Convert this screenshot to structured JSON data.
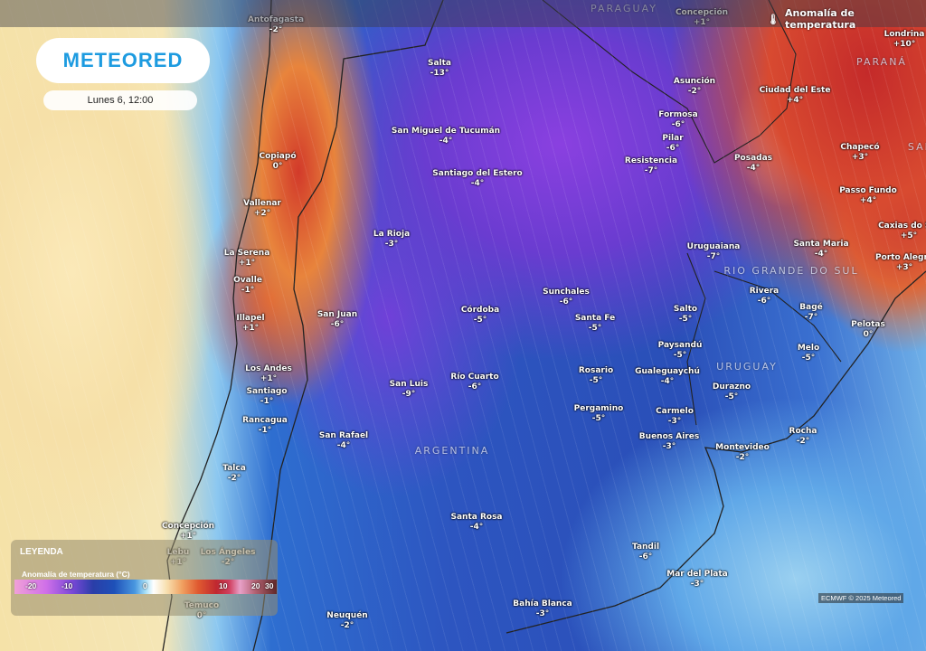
{
  "header": {
    "title": "Anomalía de temperatura",
    "icon": "thermometer-icon"
  },
  "logo": "METEORED",
  "datetime": "Lunes 6, 12:00",
  "legend": {
    "title": "LEYENDA",
    "subtitle": "Anomalía de temperatura (°C)",
    "ticks": [
      "-20",
      "-10",
      "0",
      "10",
      "20",
      "30"
    ]
  },
  "credit": "ECMWF © 2025 Meteored",
  "regions": [
    "PARAGUAY",
    "PARANÁ",
    "SANTA CATARINA",
    "RIO GRANDE DO SUL",
    "URUGUAY",
    "ARGENTINA"
  ],
  "cities": [
    {
      "name": "Antofagasta",
      "value": "-2°"
    },
    {
      "name": "Concepción",
      "value": "+1°"
    },
    {
      "name": "Londrina",
      "value": "+10°"
    },
    {
      "name": "Salta",
      "value": "-13°"
    },
    {
      "name": "San Miguel de Tucumán",
      "value": "-4°"
    },
    {
      "name": "Asunción",
      "value": "-2°"
    },
    {
      "name": "Ciudad del Este",
      "value": "+4°"
    },
    {
      "name": "Formosa",
      "value": "-6°"
    },
    {
      "name": "Pilar",
      "value": "-6°"
    },
    {
      "name": "Resistencia",
      "value": "-7°"
    },
    {
      "name": "Posadas",
      "value": "-4°"
    },
    {
      "name": "Chapecó",
      "value": "+3°"
    },
    {
      "name": "Passo Fundo",
      "value": "+4°"
    },
    {
      "name": "Caxias do Sul",
      "value": "+5°"
    },
    {
      "name": "Porto Alegre",
      "value": "+3°"
    },
    {
      "name": "Santiago del Estero",
      "value": "-4°"
    },
    {
      "name": "Copiapó",
      "value": "0°"
    },
    {
      "name": "Vallenar",
      "value": "+2°"
    },
    {
      "name": "La Rioja",
      "value": "-3°"
    },
    {
      "name": "La Serena",
      "value": "+1°"
    },
    {
      "name": "Ovalle",
      "value": "-1°"
    },
    {
      "name": "Uruguaiana",
      "value": "-7°"
    },
    {
      "name": "Santa Maria",
      "value": "-4°"
    },
    {
      "name": "Rivera",
      "value": "-6°"
    },
    {
      "name": "Bagé",
      "value": "-7°"
    },
    {
      "name": "Sunchales",
      "value": "-6°"
    },
    {
      "name": "Córdoba",
      "value": "-5°"
    },
    {
      "name": "San Juan",
      "value": "-6°"
    },
    {
      "name": "Illapel",
      "value": "+1°"
    },
    {
      "name": "Salto",
      "value": "-5°"
    },
    {
      "name": "Santa Fe",
      "value": "-5°"
    },
    {
      "name": "Pelotas",
      "value": "0°"
    },
    {
      "name": "Paysandú",
      "value": "-5°"
    },
    {
      "name": "Melo",
      "value": "-5°"
    },
    {
      "name": "Los Andes",
      "value": "+1°"
    },
    {
      "name": "Rosario",
      "value": "-5°"
    },
    {
      "name": "Gualeguaychú",
      "value": "-4°"
    },
    {
      "name": "Río Cuarto",
      "value": "-6°"
    },
    {
      "name": "San Luis",
      "value": "-9°"
    },
    {
      "name": "Durazno",
      "value": "-5°"
    },
    {
      "name": "Santiago",
      "value": "-1°"
    },
    {
      "name": "Pergamino",
      "value": "-5°"
    },
    {
      "name": "Carmelo",
      "value": "-3°"
    },
    {
      "name": "Rancagua",
      "value": "-1°"
    },
    {
      "name": "Rocha",
      "value": "-2°"
    },
    {
      "name": "Buenos Aires",
      "value": "-3°"
    },
    {
      "name": "San Rafael",
      "value": "-4°"
    },
    {
      "name": "Montevideo",
      "value": "-2°"
    },
    {
      "name": "Talca",
      "value": "-2°"
    },
    {
      "name": "Santa Rosa",
      "value": "-4°"
    },
    {
      "name": "Concepción",
      "value": "+1°"
    },
    {
      "name": "Lebu",
      "value": "+1°"
    },
    {
      "name": "Los Ángeles",
      "value": "-2°"
    },
    {
      "name": "Tandil",
      "value": "-6°"
    },
    {
      "name": "Mar del Plata",
      "value": "-3°"
    },
    {
      "name": "Temuco",
      "value": "0°"
    },
    {
      "name": "Bahía Blanca",
      "value": "-3°"
    },
    {
      "name": "Neuquén",
      "value": "-2°"
    }
  ]
}
